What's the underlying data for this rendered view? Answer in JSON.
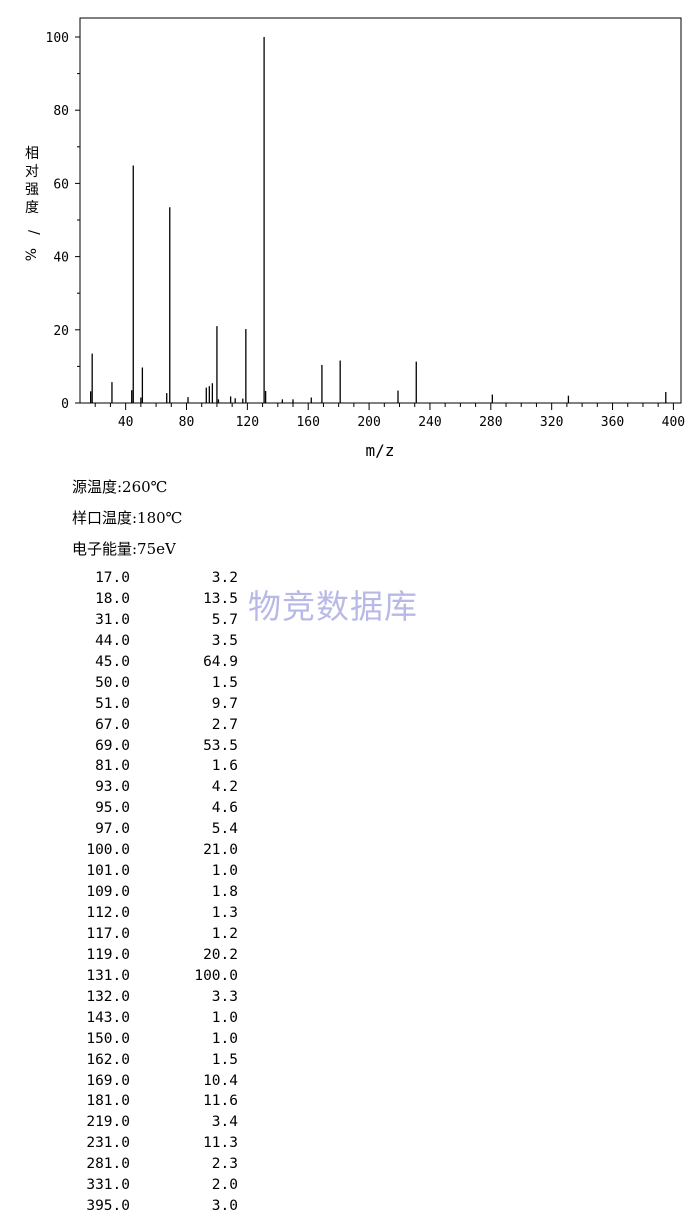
{
  "chart_data": {
    "type": "bar",
    "xlabel": "m/z",
    "ylabel": "相对强度/%",
    "xlim": [
      10,
      405
    ],
    "ylim": [
      0,
      105
    ],
    "x_ticks": [
      40,
      80,
      120,
      160,
      200,
      240,
      280,
      320,
      360,
      400
    ],
    "y_ticks": [
      0,
      20,
      40,
      60,
      80,
      100
    ],
    "x": [
      17,
      18,
      31,
      44,
      45,
      50,
      51,
      67,
      69,
      81,
      93,
      95,
      97,
      100,
      101,
      109,
      112,
      117,
      119,
      131,
      132,
      143,
      150,
      162,
      169,
      181,
      219,
      231,
      281,
      331,
      395
    ],
    "values": [
      3.2,
      13.5,
      5.7,
      3.5,
      64.9,
      1.5,
      9.7,
      2.7,
      53.5,
      1.6,
      4.2,
      4.6,
      5.4,
      21.0,
      1.0,
      1.8,
      1.3,
      1.2,
      20.2,
      100.0,
      3.3,
      1.0,
      1.0,
      1.5,
      10.4,
      11.6,
      3.4,
      11.3,
      2.3,
      2.0,
      3.0
    ]
  },
  "params": {
    "source_temp": "源温度:260℃",
    "sample_temp": "样口温度:180℃",
    "electron_energy": "电子能量:75eV"
  },
  "peaks": [
    {
      "mz": "17.0",
      "ab": "3.2"
    },
    {
      "mz": "18.0",
      "ab": "13.5"
    },
    {
      "mz": "31.0",
      "ab": "5.7"
    },
    {
      "mz": "44.0",
      "ab": "3.5"
    },
    {
      "mz": "45.0",
      "ab": "64.9"
    },
    {
      "mz": "50.0",
      "ab": "1.5"
    },
    {
      "mz": "51.0",
      "ab": "9.7"
    },
    {
      "mz": "67.0",
      "ab": "2.7"
    },
    {
      "mz": "69.0",
      "ab": "53.5"
    },
    {
      "mz": "81.0",
      "ab": "1.6"
    },
    {
      "mz": "93.0",
      "ab": "4.2"
    },
    {
      "mz": "95.0",
      "ab": "4.6"
    },
    {
      "mz": "97.0",
      "ab": "5.4"
    },
    {
      "mz": "100.0",
      "ab": "21.0"
    },
    {
      "mz": "101.0",
      "ab": "1.0"
    },
    {
      "mz": "109.0",
      "ab": "1.8"
    },
    {
      "mz": "112.0",
      "ab": "1.3"
    },
    {
      "mz": "117.0",
      "ab": "1.2"
    },
    {
      "mz": "119.0",
      "ab": "20.2"
    },
    {
      "mz": "131.0",
      "ab": "100.0"
    },
    {
      "mz": "132.0",
      "ab": "3.3"
    },
    {
      "mz": "143.0",
      "ab": "1.0"
    },
    {
      "mz": "150.0",
      "ab": "1.0"
    },
    {
      "mz": "162.0",
      "ab": "1.5"
    },
    {
      "mz": "169.0",
      "ab": "10.4"
    },
    {
      "mz": "181.0",
      "ab": "11.6"
    },
    {
      "mz": "219.0",
      "ab": "3.4"
    },
    {
      "mz": "231.0",
      "ab": "11.3"
    },
    {
      "mz": "281.0",
      "ab": "2.3"
    },
    {
      "mz": "331.0",
      "ab": "2.0"
    },
    {
      "mz": "395.0",
      "ab": "3.0"
    }
  ],
  "watermark": "物竞数据库"
}
